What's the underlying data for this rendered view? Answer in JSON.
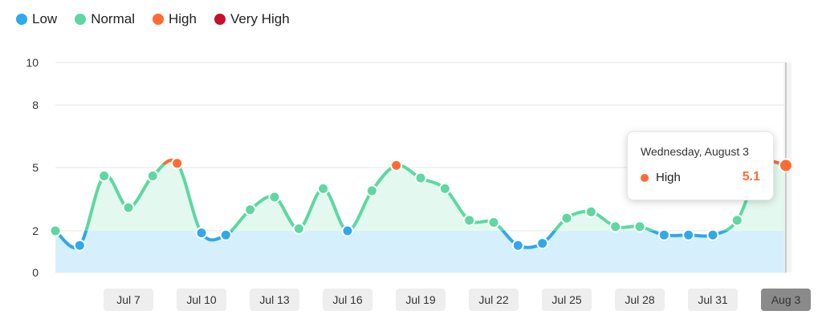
{
  "legend": [
    {
      "label": "Low",
      "color": "#2fa8ee"
    },
    {
      "label": "Normal",
      "color": "#5dd8a1"
    },
    {
      "label": "High",
      "color": "#ff6b35"
    },
    {
      "label": "Very High",
      "color": "#c8102e"
    }
  ],
  "tooltip": {
    "date": "Wednesday, August 3",
    "level": "High",
    "value": "5.1",
    "color": "#ff6b35"
  },
  "chart_data": {
    "type": "area",
    "x": [
      "Jul 4",
      "Jul 5",
      "Jul 6",
      "Jul 7",
      "Jul 8",
      "Jul 9",
      "Jul 10",
      "Jul 11",
      "Jul 12",
      "Jul 13",
      "Jul 14",
      "Jul 15",
      "Jul 16",
      "Jul 17",
      "Jul 18",
      "Jul 19",
      "Jul 20",
      "Jul 21",
      "Jul 22",
      "Jul 23",
      "Jul 24",
      "Jul 25",
      "Jul 26",
      "Jul 27",
      "Jul 28",
      "Jul 29",
      "Jul 30",
      "Jul 31",
      "Aug 1",
      "Aug 2",
      "Aug 3"
    ],
    "series": [
      {
        "values": [
          2.0,
          1.3,
          4.6,
          3.1,
          4.6,
          5.2,
          1.9,
          1.8,
          3.0,
          3.6,
          2.1,
          4.0,
          2.0,
          3.9,
          5.1,
          4.5,
          4.0,
          2.5,
          2.4,
          1.3,
          1.4,
          2.6,
          2.9,
          2.2,
          2.2,
          1.8,
          1.8,
          1.8,
          2.5,
          5.1,
          5.1
        ]
      }
    ],
    "categories_levels": [
      "Normal",
      "Low",
      "Normal",
      "Normal",
      "Normal",
      "High",
      "Low",
      "Low",
      "Normal",
      "Normal",
      "Normal",
      "Normal",
      "Low",
      "Normal",
      "High",
      "Normal",
      "Normal",
      "Normal",
      "Normal",
      "Low",
      "Low",
      "Normal",
      "Normal",
      "Normal",
      "Normal",
      "Low",
      "Low",
      "Low",
      "Normal",
      "High",
      "High"
    ],
    "yticks": [
      "0",
      "2",
      "5",
      "8",
      "10"
    ],
    "ytick_values": [
      0,
      2,
      5,
      8,
      10
    ],
    "ylim": [
      0,
      10
    ],
    "xticks": [
      "Jul 7",
      "Jul 10",
      "Jul 13",
      "Jul 16",
      "Jul 19",
      "Jul 22",
      "Jul 25",
      "Jul 28",
      "Jul 31",
      "Aug 3"
    ],
    "selected_x": "Aug 3",
    "xlabel": "",
    "ylabel": "",
    "grid": true,
    "low_threshold": 2,
    "colors": {
      "low": "#2fa8ee",
      "normal": "#5dd8a1",
      "high": "#ff6b35",
      "low_fill": "#d5effc",
      "normal_fill": "#e3f8ee",
      "grid": "#e5e5e5",
      "tick_bg": "#eeeeee",
      "selected_tick_bg": "#8a8a8a"
    }
  }
}
